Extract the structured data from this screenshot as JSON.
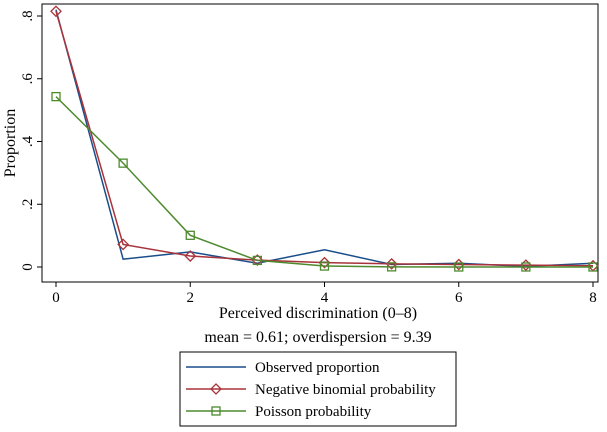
{
  "chart_data": {
    "type": "line",
    "x": [
      0,
      1,
      2,
      3,
      4,
      5,
      6,
      7,
      8
    ],
    "series": [
      {
        "name": "Observed proportion",
        "values": [
          0.82,
          0.025,
          0.048,
          0.012,
          0.055,
          0.008,
          0.012,
          0.002,
          0.012
        ],
        "color": "#1a4e8a",
        "marker": "none"
      },
      {
        "name": "Negative binomial probability",
        "values": [
          0.815,
          0.072,
          0.035,
          0.022,
          0.014,
          0.01,
          0.008,
          0.006,
          0.004
        ],
        "color": "#a8333a",
        "marker": "diamond"
      },
      {
        "name": "Poisson probability",
        "values": [
          0.543,
          0.331,
          0.101,
          0.021,
          0.003,
          0.0004,
          0.0,
          0.0,
          0.0
        ],
        "color": "#4e8a2e",
        "marker": "square"
      }
    ],
    "xlabel": "Perceived discrimination (0–8)",
    "ylabel": "Proportion",
    "note": "mean = 0.61; overdispersion = 9.39",
    "xlim": [
      0,
      8
    ],
    "ylim": [
      0,
      0.8
    ],
    "xticks": [
      0,
      2,
      4,
      6,
      8
    ],
    "xtick_labels": [
      "0",
      "2",
      "4",
      "6",
      "8"
    ],
    "yticks": [
      0,
      0.2,
      0.4,
      0.6,
      0.8
    ],
    "ytick_labels": [
      "0",
      ".2",
      ".4",
      ".6",
      ".8"
    ],
    "legend_position": "bottom-center",
    "grid": false
  }
}
